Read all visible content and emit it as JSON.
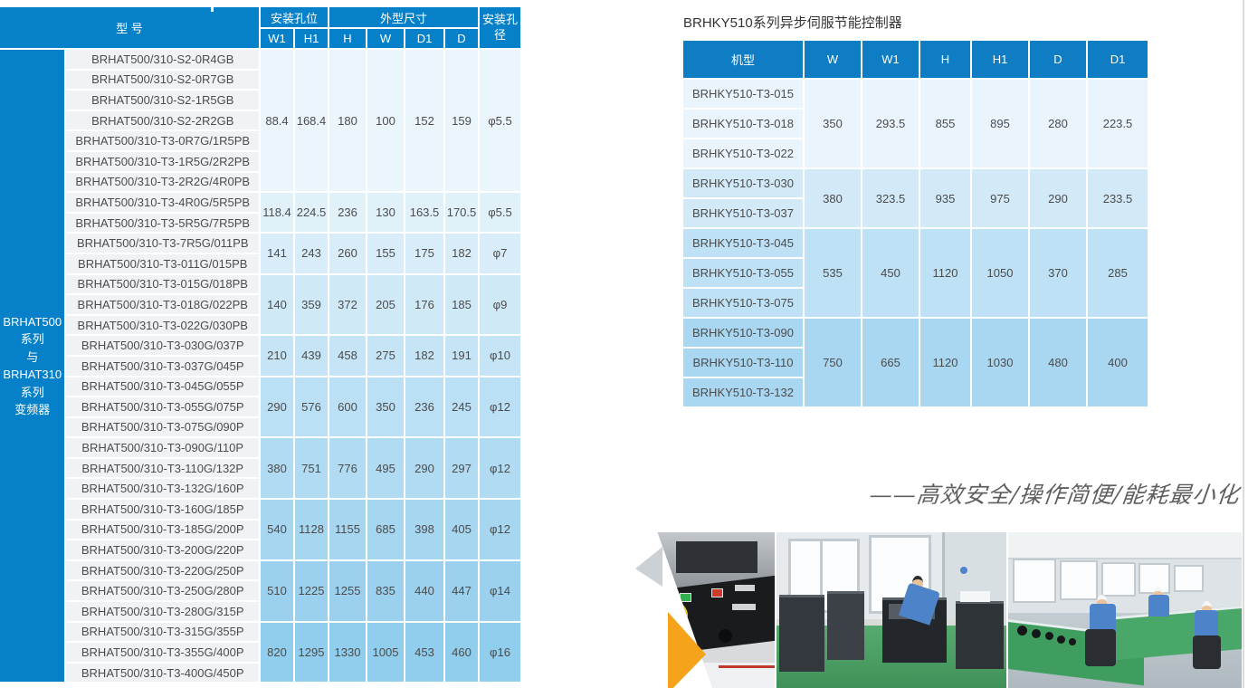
{
  "colors": {
    "left_header_blue": "#0681c9",
    "right_header_blue": "#0f7dc3",
    "accent_orange": "#f6a31c",
    "model_cell_bg": "#eff3f6"
  },
  "left_table": {
    "series_label_lines": [
      "BRHAT500",
      "系列",
      "与",
      "BRHAT310",
      "系列",
      "变频器"
    ],
    "header": {
      "model": "型 号",
      "mount_hole_group": "安装孔位",
      "dimension_group": "外型尺寸",
      "hole_dia": "安装孔径",
      "sub": [
        "W1",
        "H1",
        "H",
        "W",
        "D1",
        "D"
      ]
    },
    "groups": [
      {
        "bg": "#ebf5fc",
        "w1": "88.4",
        "h1": "168.4",
        "h": "180",
        "w": "100",
        "d1": "152",
        "d": "159",
        "dia": "φ5.5",
        "models": [
          "BRHAT500/310-S2-0R4GB",
          "BRHAT500/310-S2-0R7GB",
          "BRHAT500/310-S2-1R5GB",
          "BRHAT500/310-S2-2R2GB",
          "BRHAT500/310-T3-0R7G/1R5PB",
          "BRHAT500/310-T3-1R5G/2R2PB",
          "BRHAT500/310-T3-2R2G/4R0PB"
        ]
      },
      {
        "bg": "#e1f1fa",
        "w1": "118.4",
        "h1": "224.5",
        "h": "236",
        "w": "130",
        "d1": "163.5",
        "d": "170.5",
        "dia": "φ5.5",
        "models": [
          "BRHAT500/310-T3-4R0G/5R5PB",
          "BRHAT500/310-T3-5R5G/7R5PB"
        ]
      },
      {
        "bg": "#d8edf9",
        "w1": "141",
        "h1": "243",
        "h": "260",
        "w": "155",
        "d1": "175",
        "d": "182",
        "dia": "φ7",
        "models": [
          "BRHAT500/310-T3-7R5G/011PB",
          "BRHAT500/310-T3-011G/015PB"
        ]
      },
      {
        "bg": "#cfe9f7",
        "w1": "140",
        "h1": "359",
        "h": "372",
        "w": "205",
        "d1": "176",
        "d": "185",
        "dia": "φ9",
        "models": [
          "BRHAT500/310-T3-015G/018PB",
          "BRHAT500/310-T3-018G/022PB",
          "BRHAT500/310-T3-022G/030PB"
        ]
      },
      {
        "bg": "#c5e4f6",
        "w1": "210",
        "h1": "439",
        "h": "458",
        "w": "275",
        "d1": "182",
        "d": "191",
        "dia": "φ10",
        "models": [
          "BRHAT500/310-T3-030G/037P",
          "BRHAT500/310-T3-037G/045P"
        ]
      },
      {
        "bg": "#bbdff4",
        "w1": "290",
        "h1": "576",
        "h": "600",
        "w": "350",
        "d1": "236",
        "d": "245",
        "dia": "φ12",
        "models": [
          "BRHAT500/310-T3-045G/055P",
          "BRHAT500/310-T3-055G/075P",
          "BRHAT500/310-T3-075G/090P"
        ]
      },
      {
        "bg": "#b0dbf2",
        "w1": "380",
        "h1": "751",
        "h": "776",
        "w": "495",
        "d1": "290",
        "d": "297",
        "dia": "φ12",
        "models": [
          "BRHAT500/310-T3-090G/110P",
          "BRHAT500/310-T3-110G/132P",
          "BRHAT500/310-T3-132G/160P"
        ]
      },
      {
        "bg": "#a6d6f0",
        "w1": "540",
        "h1": "1128",
        "h": "1155",
        "w": "685",
        "d1": "398",
        "d": "405",
        "dia": "φ12",
        "models": [
          "BRHAT500/310-T3-160G/185P",
          "BRHAT500/310-T3-185G/200P",
          "BRHAT500/310-T3-200G/220P"
        ]
      },
      {
        "bg": "#9bd1ee",
        "w1": "510",
        "h1": "1225",
        "h": "1255",
        "w": "835",
        "d1": "440",
        "d": "447",
        "dia": "φ14",
        "models": [
          "BRHAT500/310-T3-220G/250P",
          "BRHAT500/310-T3-250G/280P",
          "BRHAT500/310-T3-280G/315P"
        ]
      },
      {
        "bg": "#91cdec",
        "w1": "820",
        "h1": "1295",
        "h": "1330",
        "w": "1005",
        "d1": "453",
        "d": "460",
        "dia": "φ16",
        "models": [
          "BRHAT500/310-T3-315G/355P",
          "BRHAT500/310-T3-355G/400P",
          "BRHAT500/310-T3-400G/450P"
        ]
      }
    ]
  },
  "right_table": {
    "title": "BRHKY510系列异步伺服节能控制器",
    "headers": [
      "机型",
      "W",
      "W1",
      "H",
      "H1",
      "D",
      "D1"
    ],
    "groups": [
      {
        "bg": "#e9f4fc",
        "values": [
          "350",
          "293.5",
          "855",
          "895",
          "280",
          "223.5"
        ],
        "models": [
          "BRHKY510-T3-015",
          "BRHKY510-T3-018",
          "BRHKY510-T3-022"
        ]
      },
      {
        "bg": "#d2e9f8",
        "values": [
          "380",
          "323.5",
          "935",
          "975",
          "290",
          "233.5"
        ],
        "models": [
          "BRHKY510-T3-030",
          "BRHKY510-T3-037"
        ]
      },
      {
        "bg": "#bee1f5",
        "values": [
          "535",
          "450",
          "1120",
          "1050",
          "370",
          "285"
        ],
        "models": [
          "BRHKY510-T3-045",
          "BRHKY510-T3-055",
          "BRHKY510-T3-075"
        ]
      },
      {
        "bg": "#a9d7f1",
        "values": [
          "750",
          "665",
          "1120",
          "1030",
          "480",
          "400"
        ],
        "models": [
          "BRHKY510-T3-090",
          "BRHKY510-T3-110",
          "BRHKY510-T3-132"
        ]
      }
    ]
  },
  "slogan": "——高效安全/操作简便/能耗最小化"
}
